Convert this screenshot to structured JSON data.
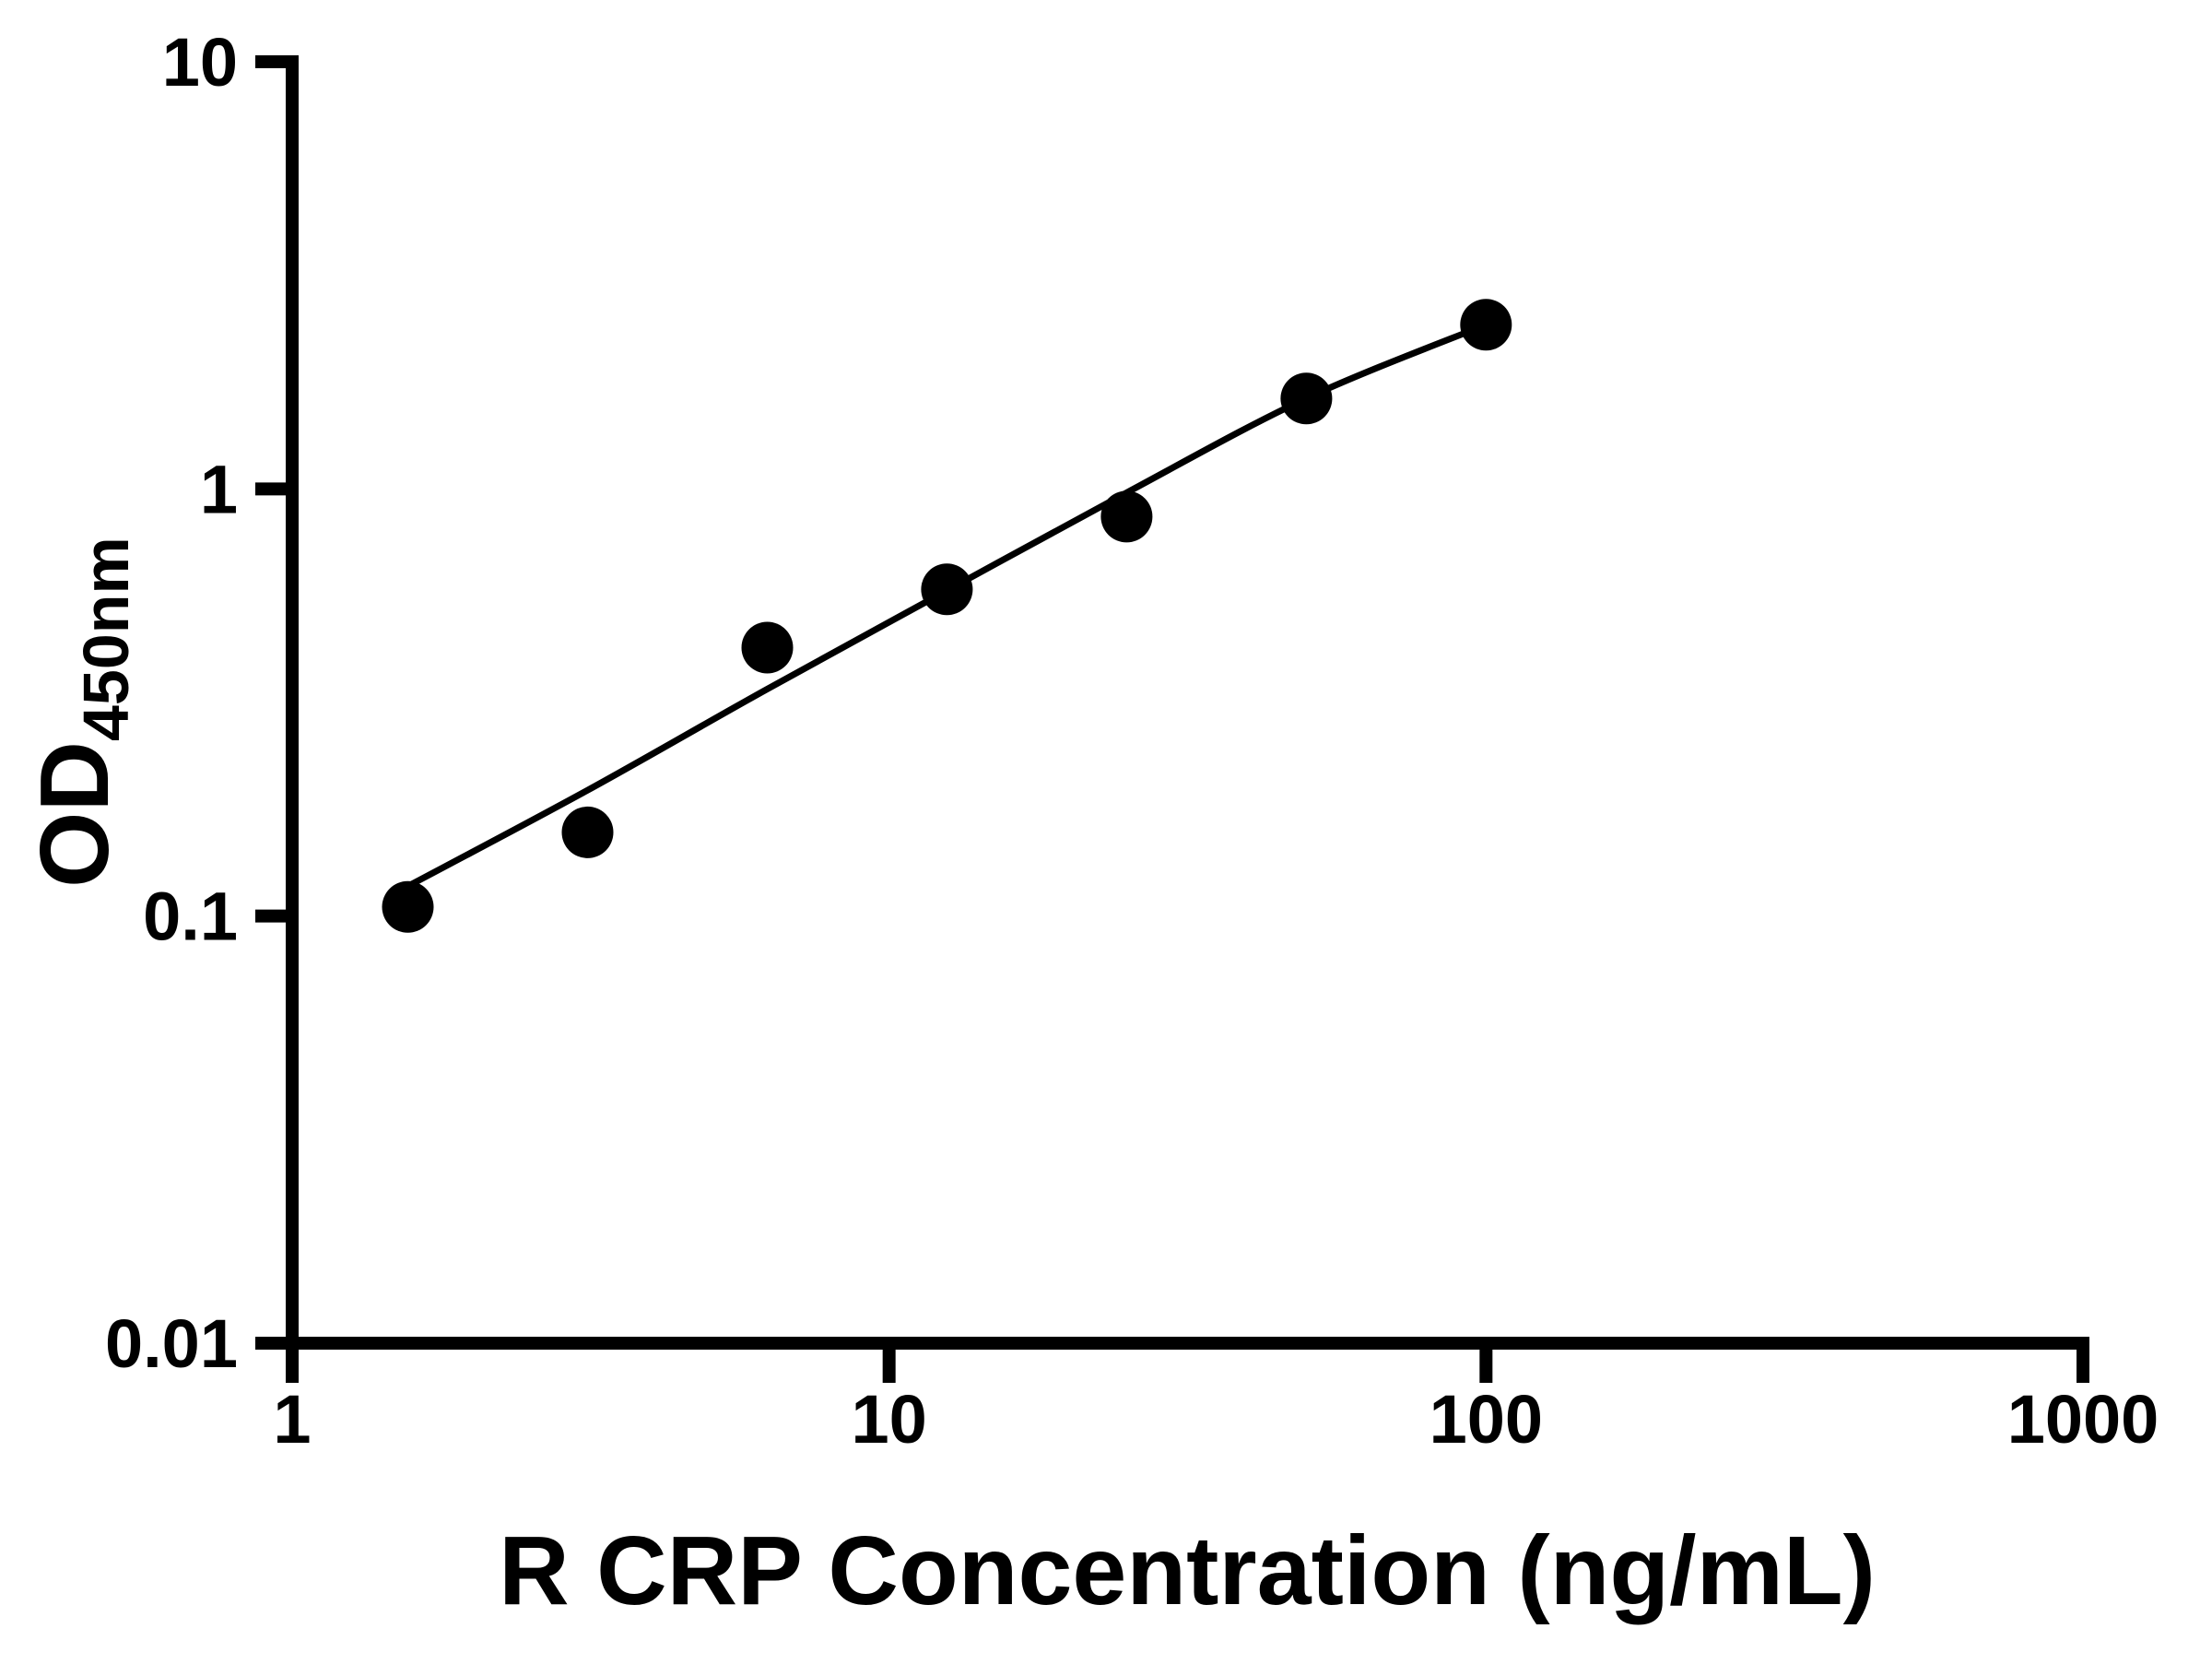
{
  "figure": {
    "background": "#ffffff",
    "ink": "#000000"
  },
  "chart_data": {
    "type": "scatter",
    "title": "",
    "xlabel": "R CRP Concentration (ng/mL)",
    "ylabel": "OD",
    "ylabel_sub": "450nm",
    "x_scale": "log",
    "y_scale": "log",
    "xlim": [
      1,
      1000
    ],
    "ylim": [
      0.01,
      10
    ],
    "grid": false,
    "legend": false,
    "x_ticks": {
      "values": [
        1,
        10,
        100,
        1000
      ],
      "labels": [
        "1",
        "10",
        "100",
        "1000"
      ]
    },
    "y_ticks": {
      "values": [
        10,
        1,
        0.1,
        0.01
      ],
      "labels": [
        "10",
        "1",
        "0.1",
        "0.01"
      ]
    },
    "series": [
      {
        "name": "standard-points",
        "type": "scatter",
        "marker": "circle",
        "color": "#000000",
        "points": [
          [
            1.5625,
            0.105
          ],
          [
            3.125,
            0.157
          ],
          [
            6.25,
            0.425
          ],
          [
            12.5,
            0.582
          ],
          [
            25,
            0.861
          ],
          [
            50,
            1.628
          ],
          [
            100,
            2.423
          ]
        ]
      },
      {
        "name": "fit-curve",
        "type": "line",
        "color": "#000000",
        "points": [
          [
            1.59,
            0.119
          ],
          [
            3.125,
            0.197
          ],
          [
            6.25,
            0.34
          ],
          [
            12.5,
            0.578
          ],
          [
            25,
            0.98
          ],
          [
            50,
            1.629
          ],
          [
            100,
            2.423
          ]
        ]
      }
    ]
  }
}
